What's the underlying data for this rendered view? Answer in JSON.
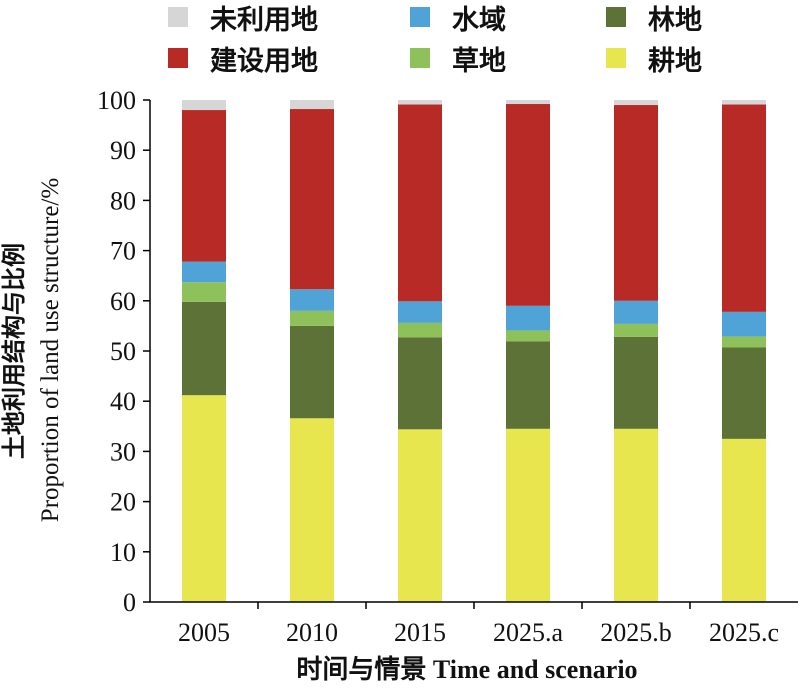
{
  "chart_data": {
    "type": "bar",
    "stacked": true,
    "categories": [
      "2005",
      "2010",
      "2015",
      "2025.a",
      "2025.b",
      "2025.c"
    ],
    "series": [
      {
        "name": "耕地",
        "color": "#e8e64e",
        "values": [
          41.2,
          36.6,
          34.4,
          34.5,
          34.5,
          32.5
        ]
      },
      {
        "name": "林地",
        "color": "#5d7236",
        "values": [
          18.6,
          18.4,
          18.3,
          17.4,
          18.3,
          18.2
        ]
      },
      {
        "name": "草地",
        "color": "#8fc15b",
        "values": [
          3.9,
          3.0,
          2.9,
          2.2,
          2.6,
          2.2
        ]
      },
      {
        "name": "水域",
        "color": "#4fa3d6",
        "values": [
          4.1,
          4.3,
          4.3,
          4.9,
          4.6,
          4.9
        ]
      },
      {
        "name": "建设用地",
        "color": "#b72a26",
        "values": [
          30.2,
          35.9,
          39.2,
          40.2,
          39.0,
          41.3
        ]
      },
      {
        "name": "未利用地",
        "color": "#d6d6d6",
        "values": [
          2.0,
          1.8,
          0.9,
          0.8,
          1.0,
          0.9
        ]
      }
    ],
    "ylim": [
      0,
      100
    ],
    "yticks": [
      0,
      10,
      20,
      30,
      40,
      50,
      60,
      70,
      80,
      90,
      100
    ],
    "ylabel_cn": "土地利用结构与比例",
    "ylabel_en": "Proportion of land use structure/%",
    "xlabel": "时间与情景 Time and scenario",
    "legend_position": "top",
    "legend_order": [
      "未利用地",
      "水域",
      "林地",
      "建设用地",
      "草地",
      "耕地"
    ],
    "grid": false
  }
}
